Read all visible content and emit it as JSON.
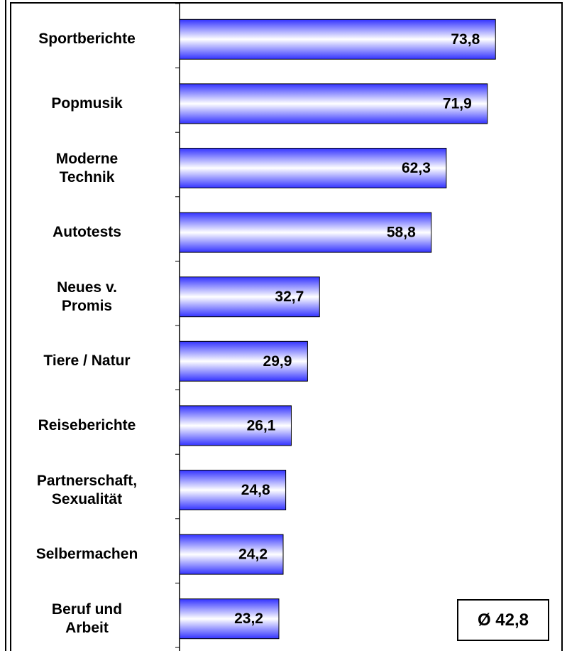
{
  "chart_data": {
    "type": "barh",
    "categories": [
      "Sportberichte",
      "Popmusik",
      "Moderne\nTechnik",
      "Autotests",
      "Neues v.\nPromis",
      "Tiere / Natur",
      "Reiseberichte",
      "Partnerschaft,\nSexualität",
      "Selbermachen",
      "Beruf und\nArbeit"
    ],
    "values": [
      73.8,
      71.9,
      62.3,
      58.8,
      32.7,
      29.9,
      26.1,
      24.8,
      24.2,
      23.2
    ],
    "value_labels": [
      "73,8",
      "71,9",
      "62,3",
      "58,8",
      "32,7",
      "29,9",
      "26,1",
      "24,8",
      "24,2",
      "23,2"
    ],
    "color": "#3333ff",
    "xlim": [
      0,
      90
    ],
    "annotation": "Ø 42,8"
  }
}
